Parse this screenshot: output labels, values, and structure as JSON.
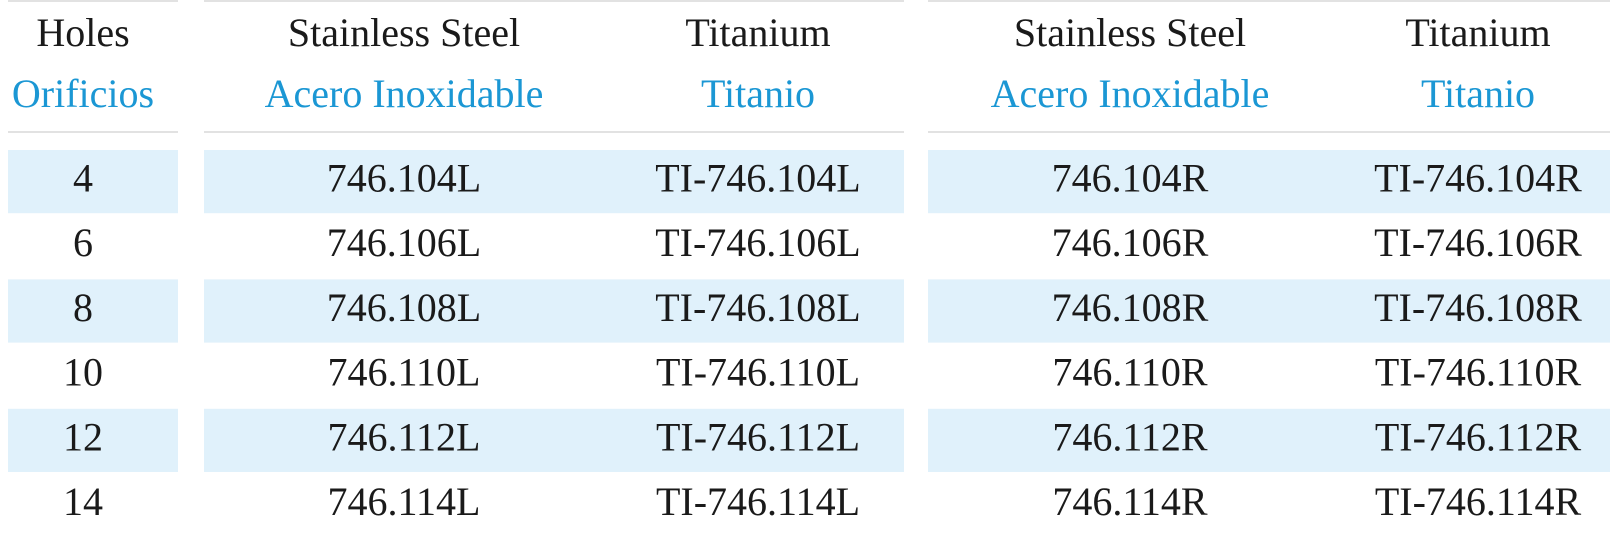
{
  "table": {
    "header": [
      {
        "en": "Holes",
        "es": "Orificios"
      },
      {
        "en": "Stainless Steel",
        "es": "Acero Inoxidable"
      },
      {
        "en": "Titanium",
        "es": "Titanio"
      },
      {
        "en": "Stainless Steel",
        "es": "Acero Inoxidable"
      },
      {
        "en": "Titanium",
        "es": "Titanio"
      }
    ],
    "rows": [
      [
        "4",
        "746.104L",
        "TI-746.104L",
        "746.104R",
        "TI-746.104R"
      ],
      [
        "6",
        "746.106L",
        "TI-746.106L",
        "746.106R",
        "TI-746.106R"
      ],
      [
        "8",
        "746.108L",
        "TI-746.108L",
        "746.108R",
        "TI-746.108R"
      ],
      [
        "10",
        "746.110L",
        "TI-746.110L",
        "746.110R",
        "TI-746.110R"
      ],
      [
        "12",
        "746.112L",
        "TI-746.112L",
        "746.112R",
        "TI-746.112R"
      ],
      [
        "14",
        "746.114L",
        "TI-746.114L",
        "746.114R",
        "TI-746.114R"
      ]
    ]
  }
}
